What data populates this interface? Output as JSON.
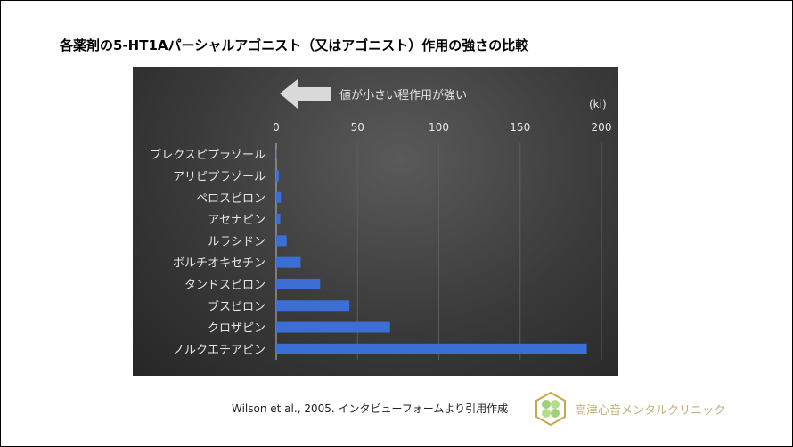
{
  "slide": {
    "title": "各薬剤の5-HT1Aパーシャルアゴニスト（又はアゴニスト）作用の強さの比較",
    "citation": "Wilson et al., 2005. インタビューフォームより引用作成",
    "clinic_name": "高津心音メンタルクリニック",
    "logo_icon": "clover-hexagon-logo"
  },
  "chart_data": {
    "type": "bar",
    "orientation": "horizontal",
    "annotation": "値が小さい程作用が強い",
    "annotation_icon": "left-arrow-icon",
    "unit_label": "(ki)",
    "categories": [
      "ブレクスピプラゾール",
      "アリピプラゾール",
      "ペロスピロン",
      "アセナピン",
      "ルラシドン",
      "ボルチオキセチン",
      "タンドスピロン",
      "ブスピロン",
      "クロザピン",
      "ノルクエチアピン"
    ],
    "values": [
      0.12,
      1.7,
      2.9,
      2.5,
      6.4,
      15,
      27,
      45,
      70,
      191
    ],
    "xlim": [
      0,
      200
    ],
    "ticks": [
      "0",
      "50",
      "100",
      "150",
      "200"
    ],
    "tick_values": [
      0,
      50,
      100,
      150,
      200
    ],
    "grid": true,
    "axis_position": "top",
    "colors": {
      "bar": "#3c6fd6",
      "background": "#3a3a3a",
      "text": "#e6e6e6"
    }
  }
}
